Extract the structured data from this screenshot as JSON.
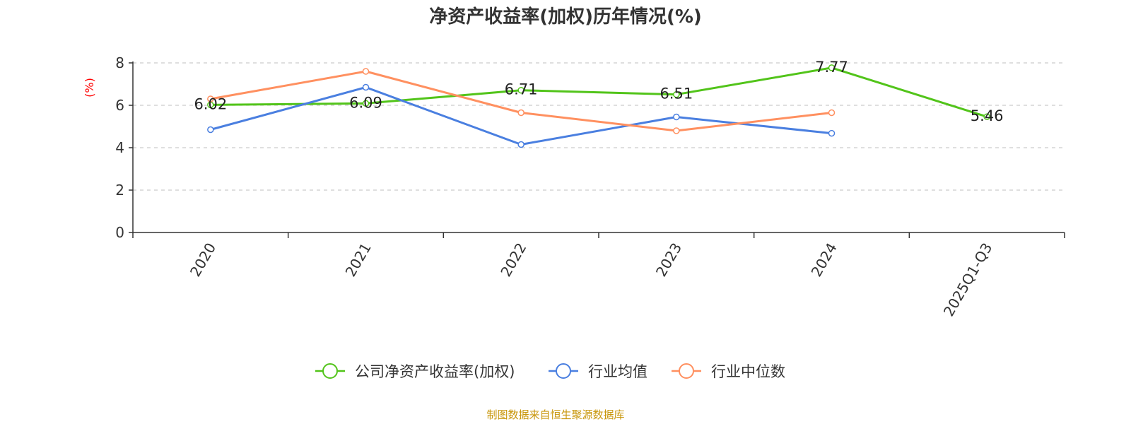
{
  "chart_data": {
    "type": "line",
    "title": "净资产收益率(加权)历年情况(%)",
    "ylabel": "(%)",
    "ylim": [
      0,
      8
    ],
    "yticks": [
      0,
      2,
      4,
      6,
      8
    ],
    "categories": [
      "2020",
      "2021",
      "2022",
      "2023",
      "2024",
      "2025Q1-Q3"
    ],
    "grid": true,
    "legend_position": "bottom",
    "series": [
      {
        "name": "公司净资产收益率(加权)",
        "color": "#52c41a",
        "values": [
          6.02,
          6.09,
          6.71,
          6.51,
          7.77,
          5.46
        ],
        "labels": [
          "6.02",
          "6.09",
          "6.71",
          "6.51",
          "7.77",
          "5.46"
        ]
      },
      {
        "name": "行业均值",
        "color": "#4a7fe0",
        "values": [
          4.85,
          6.85,
          4.15,
          5.45,
          4.68,
          null
        ]
      },
      {
        "name": "行业中位数",
        "color": "#ff9060",
        "values": [
          6.3,
          7.6,
          5.65,
          4.8,
          5.65,
          null
        ]
      }
    ]
  },
  "source_text": "制图数据来自恒生聚源数据库",
  "colors": {
    "ylabel": "#ff0000",
    "source": "#c8960a",
    "grid": "#cccccc",
    "axis": "#333333"
  }
}
